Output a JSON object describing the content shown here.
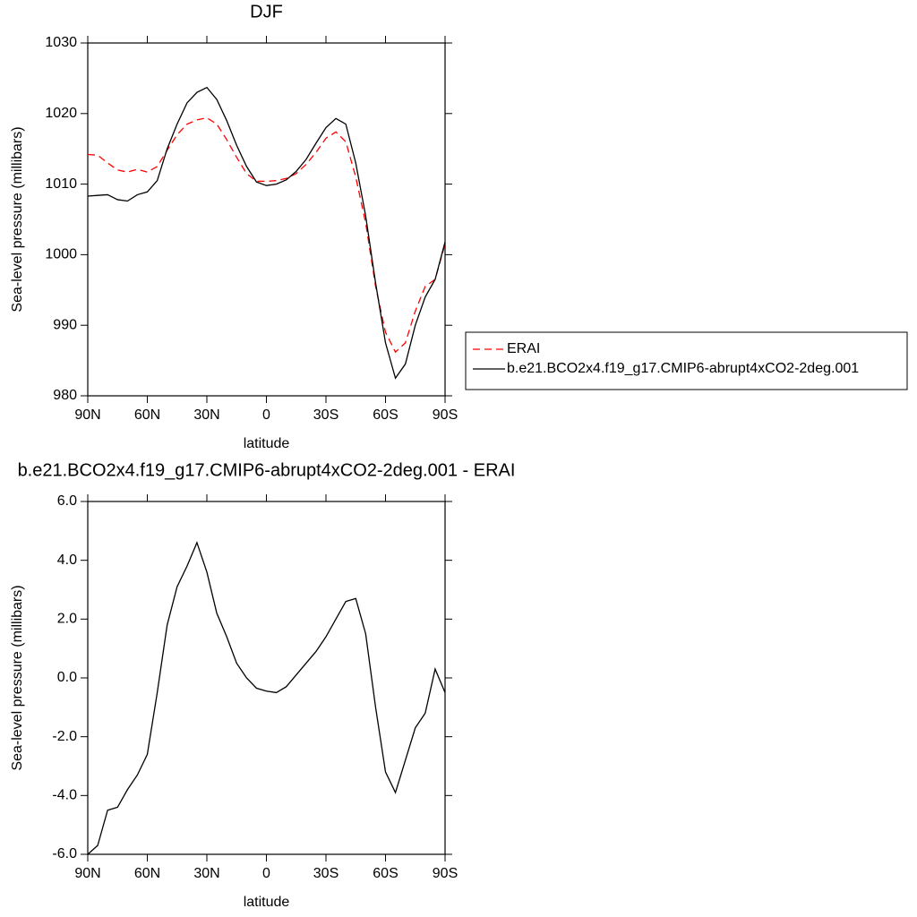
{
  "chart_data": [
    {
      "type": "line",
      "title": "DJF",
      "xlabel": "latitude",
      "ylabel": "Sea-level pressure (millibars)",
      "x": [
        90,
        85,
        80,
        75,
        70,
        65,
        60,
        55,
        50,
        45,
        40,
        35,
        30,
        25,
        20,
        15,
        10,
        5,
        0,
        -5,
        -10,
        -15,
        -20,
        -25,
        -30,
        -35,
        -40,
        -45,
        -50,
        -55,
        -60,
        -65,
        -70,
        -75,
        -80,
        -85,
        -90
      ],
      "series": [
        {
          "name": "ERAI",
          "color": "#ff0000",
          "style": "dashed",
          "values": [
            1014.2,
            1014.1,
            1013.0,
            1012.0,
            1011.7,
            1012.1,
            1011.7,
            1012.5,
            1014.8,
            1017.0,
            1018.5,
            1019.1,
            1019.4,
            1018.5,
            1016.3,
            1013.8,
            1011.5,
            1010.4,
            1010.4,
            1010.5,
            1010.8,
            1011.5,
            1012.8,
            1014.5,
            1016.5,
            1017.4,
            1016.0,
            1011.0,
            1004.5,
            995.5,
            989.0,
            986.2,
            987.5,
            992.0,
            995.5,
            996.5,
            1001.5
          ]
        },
        {
          "name": "b.e21.BCO2x4.f19_g17.CMIP6-abrupt4xCO2-2deg.001",
          "color": "#000000",
          "style": "solid",
          "values": [
            1008.3,
            1008.4,
            1008.5,
            1007.8,
            1007.6,
            1008.5,
            1008.9,
            1010.5,
            1015.0,
            1018.5,
            1021.5,
            1023.0,
            1023.7,
            1022.0,
            1019.0,
            1015.5,
            1012.5,
            1010.3,
            1009.8,
            1010.0,
            1010.6,
            1011.8,
            1013.5,
            1015.8,
            1018.0,
            1019.3,
            1018.5,
            1013.0,
            1005.5,
            996.0,
            987.5,
            982.5,
            984.5,
            990.0,
            994.0,
            996.5,
            1001.8
          ]
        }
      ],
      "xlim": [
        90,
        -90
      ],
      "xticks": [
        {
          "value": 90,
          "label": "90N"
        },
        {
          "value": 60,
          "label": "60N"
        },
        {
          "value": 30,
          "label": "30N"
        },
        0,
        {
          "value": -30,
          "label": "30S"
        },
        {
          "value": -60,
          "label": "60S"
        },
        {
          "value": -90,
          "label": "90S"
        }
      ],
      "ylim": [
        980,
        1030
      ],
      "yticks": [
        980,
        990,
        1000,
        1010,
        1020,
        1030
      ],
      "legend": "right"
    },
    {
      "type": "line",
      "title": "b.e21.BCO2x4.f19_g17.CMIP6-abrupt4xCO2-2deg.001 - ERAI",
      "xlabel": "latitude",
      "ylabel": "Sea-level pressure (millibars)",
      "x": [
        90,
        85,
        80,
        75,
        70,
        65,
        60,
        55,
        50,
        45,
        40,
        35,
        30,
        25,
        20,
        15,
        10,
        5,
        0,
        -5,
        -10,
        -15,
        -20,
        -25,
        -30,
        -35,
        -40,
        -45,
        -50,
        -55,
        -60,
        -65,
        -70,
        -75,
        -80,
        -85,
        -90
      ],
      "series": [
        {
          "color": "#000000",
          "style": "solid",
          "values": [
            -6.0,
            -5.7,
            -4.5,
            -4.4,
            -3.8,
            -3.3,
            -2.6,
            -0.5,
            1.8,
            3.1,
            3.8,
            4.6,
            3.6,
            2.2,
            1.4,
            0.5,
            0.0,
            -0.35,
            -0.45,
            -0.5,
            -0.3,
            0.1,
            0.5,
            0.9,
            1.4,
            2.0,
            2.6,
            2.7,
            1.5,
            -1.0,
            -3.2,
            -3.9,
            -2.8,
            -1.7,
            -1.2,
            0.3,
            -0.5
          ]
        }
      ],
      "xlim": [
        90,
        -90
      ],
      "xticks": [
        {
          "value": 90,
          "label": "90N"
        },
        {
          "value": 60,
          "label": "60N"
        },
        {
          "value": 30,
          "label": "30N"
        },
        0,
        {
          "value": -30,
          "label": "30S"
        },
        {
          "value": -60,
          "label": "60S"
        },
        {
          "value": -90,
          "label": "90S"
        }
      ],
      "ylim": [
        -6,
        6
      ],
      "yticks": [
        {
          "value": -6,
          "label": "-6.0"
        },
        {
          "value": -4,
          "label": "-4.0"
        },
        {
          "value": -2,
          "label": "-2.0"
        },
        {
          "value": 0,
          "label": "0.0"
        },
        {
          "value": 2,
          "label": "2.0"
        },
        {
          "value": 4,
          "label": "4.0"
        },
        {
          "value": 6,
          "label": "6.0"
        }
      ]
    }
  ]
}
